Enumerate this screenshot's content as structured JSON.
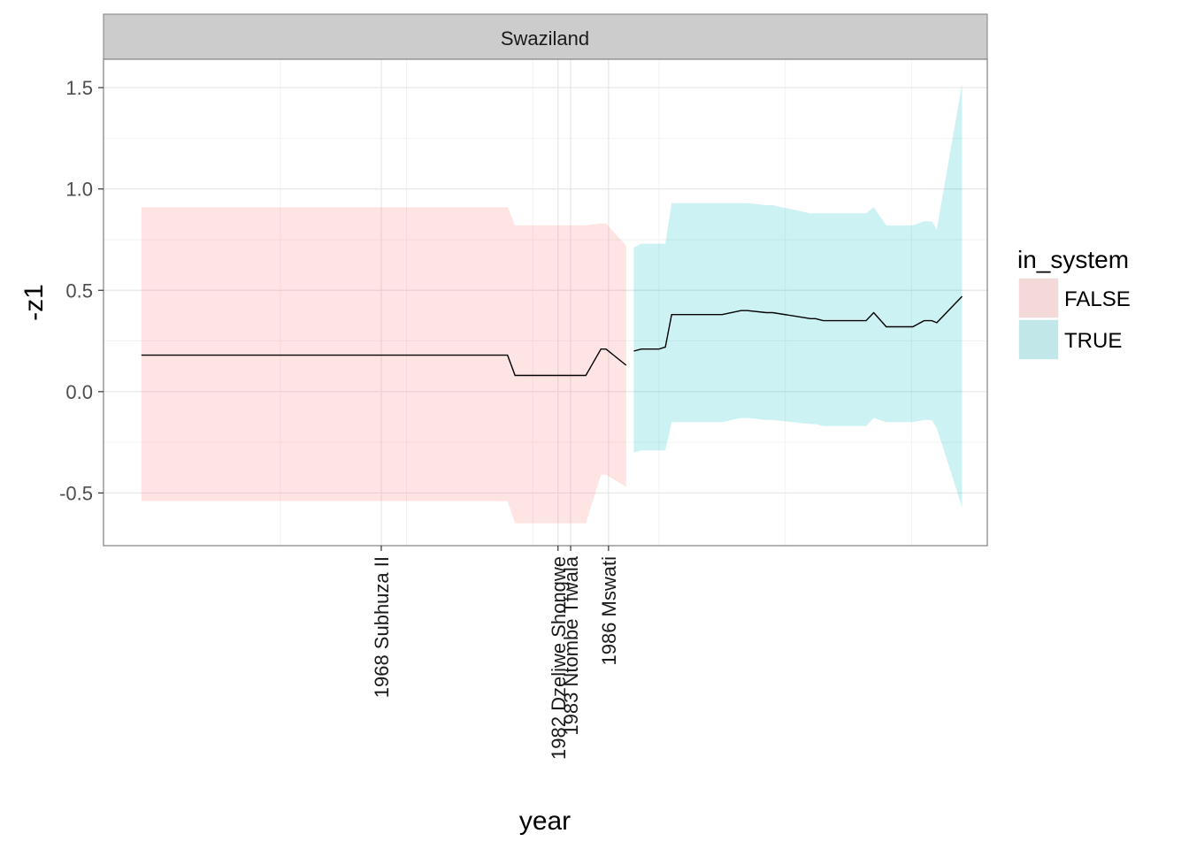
{
  "chart_data": {
    "type": "area",
    "facet": "Swaziland",
    "xlabel": "year",
    "ylabel": "-z1",
    "xlim": [
      1946,
      2016
    ],
    "ylim": [
      -0.76,
      1.64
    ],
    "yticks": [
      -0.5,
      0.0,
      0.5,
      1.0,
      1.5
    ],
    "ytick_labels": [
      "-0.5",
      "0.0",
      "0.5",
      "1.0",
      "1.5"
    ],
    "x_minor_gridlines": [
      1960,
      1970,
      1980,
      1990,
      2000,
      2010
    ],
    "xtick_events": [
      {
        "year": 1968,
        "label": "1968 Subhuza II"
      },
      {
        "year": 1982,
        "label": "1982 Dzeliwe Shongwe"
      },
      {
        "year": 1983,
        "label": "1983 Ntombe Tfwala"
      },
      {
        "year": 1986,
        "label": "1986 Mswati"
      }
    ],
    "grid": true,
    "legend": {
      "title": "in_system",
      "placement": "right",
      "entries": [
        {
          "label": "FALSE",
          "color": "#F8766D"
        },
        {
          "label": "TRUE",
          "color": "#00BFC4"
        }
      ]
    },
    "series": [
      {
        "name": "FALSE",
        "color": "#F8766D",
        "x": [
          1949,
          1950,
          1955,
          1960,
          1965,
          1966,
          1967,
          1968
        ],
        "y": [
          0.18,
          0.18,
          0.18,
          0.18,
          0.18,
          0.18,
          0.18,
          0.18
        ],
        "ymin": [
          -0.54,
          -0.54,
          -0.54,
          -0.54,
          -0.54,
          -0.54,
          -0.54,
          -0.54
        ],
        "ymax": [
          0.91,
          0.91,
          0.91,
          0.91,
          0.91,
          0.91,
          0.91,
          0.91
        ]
      }
    ],
    "band_false": {
      "x": [
        1949.0,
        1978.0,
        1978.6,
        1984.0,
        1984.2,
        1985.4,
        1985.8,
        1987.4
      ],
      "y": [
        0.18,
        0.18,
        0.08,
        0.08,
        0.08,
        0.21,
        0.21,
        0.13
      ],
      "ymin": [
        -0.54,
        -0.54,
        -0.65,
        -0.65,
        -0.65,
        -0.41,
        -0.41,
        -0.47
      ],
      "ymax": [
        0.91,
        0.91,
        0.82,
        0.82,
        0.82,
        0.83,
        0.83,
        0.72
      ]
    },
    "band_true": {
      "x": [
        1988.0,
        1988.6,
        1990.0,
        1990.5,
        1991.0,
        1995.0,
        1996.5,
        1997.0,
        1998.5,
        1999.0,
        2002.0,
        2002.4,
        2003.0,
        2003.5,
        2005.0,
        2006.4,
        2007.0,
        2008.0,
        2009.6,
        2010.1,
        2011.0,
        2011.6,
        2012.0,
        2014.0
      ],
      "y": [
        0.2,
        0.21,
        0.21,
        0.22,
        0.38,
        0.38,
        0.4,
        0.4,
        0.39,
        0.39,
        0.36,
        0.36,
        0.35,
        0.35,
        0.35,
        0.35,
        0.39,
        0.32,
        0.32,
        0.32,
        0.35,
        0.35,
        0.34,
        0.47
      ],
      "ymin": [
        -0.3,
        -0.29,
        -0.29,
        -0.29,
        -0.15,
        -0.15,
        -0.13,
        -0.13,
        -0.14,
        -0.14,
        -0.16,
        -0.16,
        -0.17,
        -0.17,
        -0.17,
        -0.17,
        -0.13,
        -0.15,
        -0.15,
        -0.15,
        -0.14,
        -0.14,
        -0.18,
        -0.57
      ],
      "ymax": [
        0.71,
        0.73,
        0.73,
        0.73,
        0.93,
        0.93,
        0.93,
        0.93,
        0.92,
        0.92,
        0.88,
        0.88,
        0.88,
        0.88,
        0.88,
        0.88,
        0.91,
        0.82,
        0.82,
        0.82,
        0.84,
        0.84,
        0.8,
        1.52
      ]
    }
  }
}
